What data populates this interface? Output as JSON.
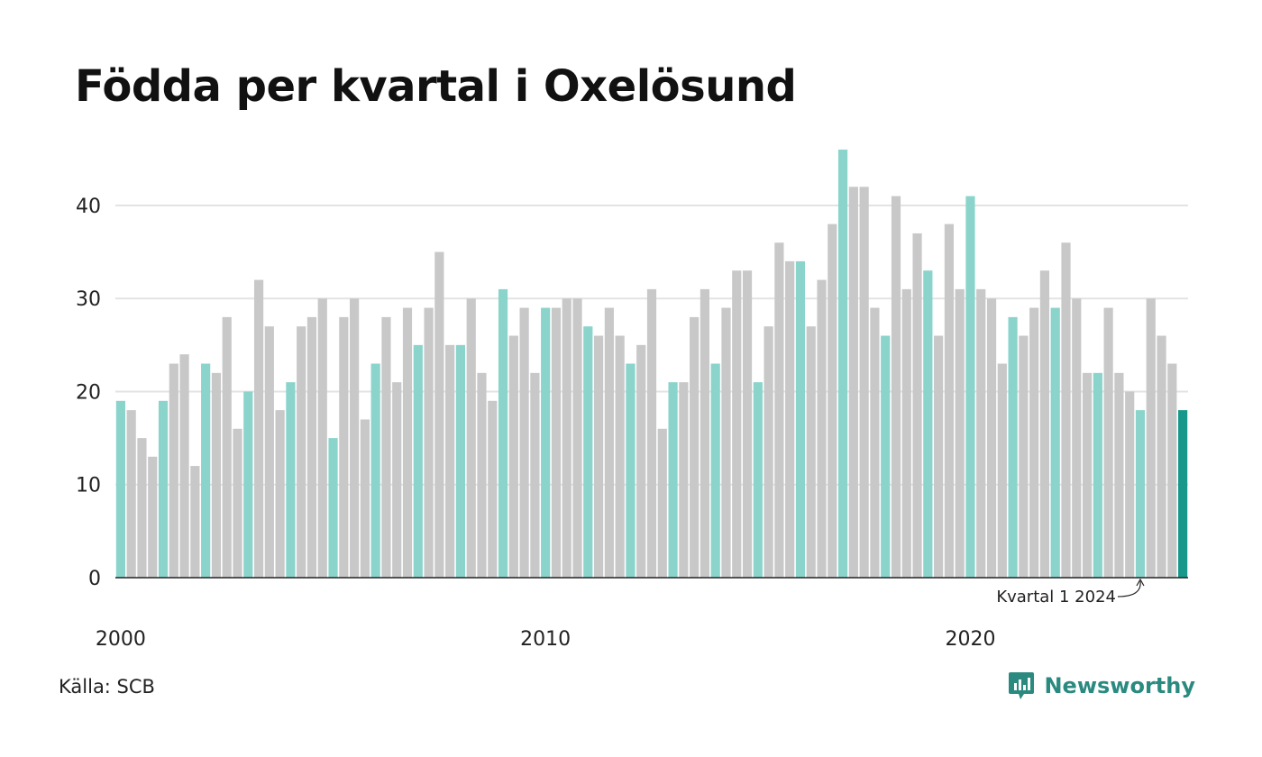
{
  "header": {
    "title": "Födda per kvartal i Oxelösund"
  },
  "footer": {
    "source": "Källa: SCB",
    "brand": "Newsworthy"
  },
  "colors": {
    "bar_default": "#c8c8c8",
    "bar_q1": "#8ad4cc",
    "bar_latest": "#17988a",
    "grid": "#e3e3e3",
    "axis": "#222222",
    "brand": "#2b8a80"
  },
  "chart_data": {
    "type": "bar",
    "title": "Födda per kvartal i Oxelösund",
    "xlabel": "",
    "ylabel": "",
    "ylim": [
      0,
      46
    ],
    "yticks": [
      0,
      10,
      20,
      30,
      40
    ],
    "xticks": [
      {
        "label": "2000",
        "index": 0
      },
      {
        "label": "2010",
        "index": 40
      },
      {
        "label": "2020",
        "index": 80
      }
    ],
    "grid": true,
    "highlight": "Q1 of each year",
    "annotation": {
      "text": "Kvartal 1 2024",
      "index": 96
    },
    "values": [
      19,
      18,
      15,
      13,
      19,
      23,
      24,
      12,
      23,
      22,
      28,
      16,
      20,
      32,
      27,
      18,
      21,
      27,
      28,
      30,
      15,
      28,
      30,
      17,
      23,
      28,
      21,
      29,
      25,
      29,
      35,
      25,
      25,
      30,
      22,
      19,
      31,
      26,
      29,
      22,
      29,
      29,
      30,
      30,
      27,
      26,
      29,
      26,
      23,
      25,
      31,
      16,
      21,
      21,
      28,
      31,
      23,
      29,
      33,
      33,
      21,
      27,
      36,
      34,
      34,
      27,
      32,
      38,
      46,
      42,
      42,
      29,
      26,
      41,
      31,
      37,
      33,
      26,
      38,
      31,
      41,
      31,
      30,
      23,
      28,
      26,
      29,
      33,
      29,
      36,
      30,
      22,
      22,
      29,
      22,
      20,
      18,
      30,
      26,
      23,
      18
    ]
  }
}
